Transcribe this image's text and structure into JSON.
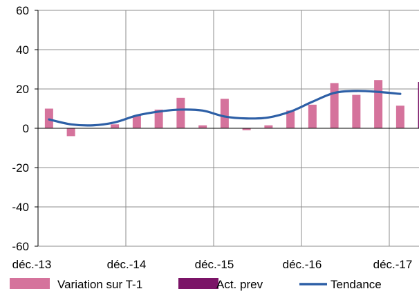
{
  "chart_data": {
    "type": "bar",
    "y_ticks": [
      "60",
      "40",
      "20",
      "0",
      "-20",
      "-40",
      "-60"
    ],
    "y_tick_values": [
      60,
      40,
      20,
      0,
      -20,
      -40,
      -60
    ],
    "x_tick_labels": [
      "déc.-13",
      "déc.-14",
      "déc.-15",
      "déc.-16",
      "déc.-17"
    ],
    "ylim": [
      -60,
      60
    ],
    "grid": true,
    "legend_position": "bottom",
    "series": [
      {
        "name": "Variation sur T-1",
        "type": "bar",
        "color": "#d5739c",
        "values": [
          10,
          -4,
          0,
          2,
          6.5,
          9.5,
          15.5,
          1.5,
          15,
          -1,
          1.5,
          9,
          12,
          23,
          17,
          24.5,
          11.5
        ]
      },
      {
        "name": "Act. prev",
        "type": "bar",
        "color": "#7b1467",
        "values": [
          null,
          null,
          null,
          null,
          null,
          null,
          null,
          null,
          null,
          null,
          null,
          null,
          null,
          null,
          null,
          null,
          null,
          23.5
        ]
      },
      {
        "name": "Tendance",
        "type": "line",
        "color": "#2d5fa6",
        "values": [
          4.5,
          2,
          1.5,
          3,
          6.5,
          8.5,
          9.5,
          9,
          6,
          5,
          5.5,
          8.5,
          13.5,
          18,
          19,
          18.5,
          17.5
        ]
      }
    ]
  }
}
